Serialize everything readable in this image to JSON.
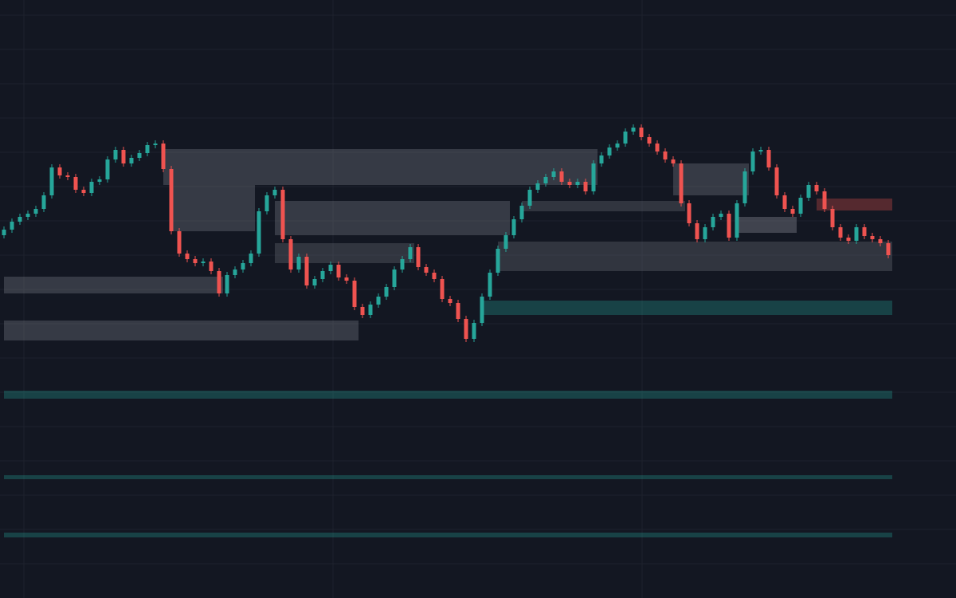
{
  "chart_data": {
    "type": "candlestick",
    "up_color": "#26a69a",
    "down_color": "#ef5350",
    "xlim": [
      -0.5,
      111.3
    ],
    "ylim": [
      0,
      750
    ],
    "open": [
      455,
      462,
      472,
      478,
      482,
      488,
      505,
      540,
      530,
      528,
      512,
      508,
      522,
      525,
      550,
      562,
      545,
      552,
      558,
      568,
      570,
      538,
      460,
      432,
      425,
      420,
      422,
      410,
      382,
      405,
      412,
      420,
      432,
      485,
      505,
      512,
      450,
      412,
      428,
      392,
      400,
      410,
      418,
      402,
      398,
      365,
      355,
      368,
      378,
      390,
      412,
      425,
      440,
      415,
      408,
      400,
      375,
      370,
      350,
      325,
      345,
      378,
      408,
      438,
      455,
      475,
      492,
      512,
      520,
      528,
      535,
      522,
      518,
      522,
      510,
      545,
      555,
      565,
      570,
      585,
      590,
      578,
      570,
      560,
      550,
      545,
      495,
      470,
      450,
      465,
      478,
      482,
      452,
      495,
      535,
      560,
      562,
      540,
      505,
      488,
      482,
      502,
      518,
      510,
      488,
      465,
      452,
      448,
      465,
      454,
      450,
      445
    ],
    "high": [
      466,
      476,
      482,
      486,
      492,
      509,
      544,
      544,
      534,
      532,
      516,
      526,
      529,
      554,
      566,
      566,
      556,
      562,
      572,
      574,
      574,
      542,
      464,
      436,
      429,
      426,
      426,
      414,
      409,
      416,
      424,
      436,
      489,
      509,
      516,
      516,
      454,
      432,
      432,
      404,
      414,
      422,
      422,
      406,
      402,
      369,
      372,
      382,
      394,
      416,
      429,
      444,
      444,
      419,
      412,
      404,
      379,
      374,
      354,
      349,
      382,
      412,
      442,
      459,
      479,
      496,
      516,
      524,
      532,
      539,
      539,
      526,
      526,
      526,
      549,
      559,
      569,
      574,
      589,
      594,
      594,
      582,
      574,
      564,
      554,
      549,
      499,
      474,
      469,
      482,
      486,
      486,
      499,
      539,
      564,
      566,
      566,
      544,
      509,
      492,
      506,
      522,
      522,
      514,
      492,
      469,
      456,
      469,
      469,
      458,
      454,
      449
    ],
    "low": [
      451,
      458,
      468,
      474,
      478,
      484,
      501,
      526,
      524,
      508,
      504,
      504,
      518,
      521,
      546,
      541,
      541,
      548,
      554,
      564,
      534,
      456,
      428,
      421,
      416,
      416,
      406,
      378,
      378,
      401,
      408,
      416,
      428,
      481,
      501,
      446,
      408,
      408,
      388,
      388,
      396,
      406,
      398,
      394,
      361,
      351,
      351,
      364,
      374,
      386,
      408,
      421,
      411,
      404,
      396,
      371,
      366,
      346,
      321,
      321,
      341,
      374,
      404,
      434,
      451,
      471,
      488,
      508,
      516,
      524,
      518,
      514,
      514,
      506,
      506,
      541,
      551,
      561,
      566,
      581,
      574,
      566,
      556,
      546,
      541,
      491,
      466,
      446,
      446,
      461,
      474,
      448,
      448,
      491,
      531,
      556,
      536,
      501,
      484,
      478,
      478,
      498,
      506,
      484,
      461,
      448,
      444,
      444,
      450,
      446,
      441,
      426
    ],
    "close": [
      462,
      472,
      478,
      482,
      488,
      505,
      540,
      530,
      528,
      512,
      508,
      522,
      525,
      550,
      562,
      545,
      552,
      558,
      568,
      570,
      538,
      460,
      432,
      425,
      420,
      422,
      410,
      382,
      405,
      412,
      420,
      432,
      485,
      505,
      512,
      450,
      412,
      428,
      392,
      400,
      410,
      418,
      402,
      398,
      365,
      355,
      368,
      378,
      390,
      412,
      425,
      440,
      415,
      408,
      400,
      375,
      370,
      350,
      325,
      345,
      378,
      408,
      438,
      455,
      475,
      492,
      512,
      520,
      528,
      535,
      522,
      518,
      522,
      510,
      545,
      555,
      565,
      570,
      585,
      590,
      578,
      570,
      560,
      550,
      545,
      495,
      470,
      450,
      465,
      478,
      482,
      452,
      495,
      535,
      560,
      562,
      540,
      505,
      488,
      482,
      502,
      518,
      510,
      488,
      465,
      452,
      448,
      465,
      454,
      450,
      445,
      430
    ],
    "zones": [
      {
        "start": 20,
        "end": 74,
        "low": 518,
        "high": 563,
        "color": "rgba(120,123,134,0.35)"
      },
      {
        "start": 21,
        "end": 31,
        "low": 460,
        "high": 518,
        "color": "rgba(120,123,134,0.35)"
      },
      {
        "start": 34,
        "end": 63,
        "low": 455,
        "high": 498,
        "color": "rgba(120,123,134,0.35)"
      },
      {
        "start": 34,
        "end": 51,
        "low": 420,
        "high": 445,
        "color": "rgba(120,123,134,0.3)"
      },
      {
        "start": 0,
        "end": 27,
        "low": 382,
        "high": 403,
        "color": "rgba(120,123,134,0.35)"
      },
      {
        "start": 0,
        "end": 44,
        "low": 323,
        "high": 348,
        "color": "rgba(120,123,134,0.35)"
      },
      {
        "start": 62,
        "end": 111,
        "low": 410,
        "high": 447,
        "color": "rgba(120,123,134,0.3)"
      },
      {
        "start": 65,
        "end": 85,
        "low": 485,
        "high": 498,
        "color": "rgba(120,123,134,0.3)"
      },
      {
        "start": 84,
        "end": 93,
        "low": 505,
        "high": 545,
        "color": "rgba(120,123,134,0.35)"
      },
      {
        "start": 92,
        "end": 99,
        "low": 458,
        "high": 478,
        "color": "rgba(120,123,134,0.45)"
      },
      {
        "start": 60,
        "end": 111,
        "low": 355,
        "high": 373,
        "color": "rgba(38,166,154,0.3)"
      },
      {
        "start": 0,
        "end": 111,
        "low": 250,
        "high": 260,
        "color": "rgba(38,166,154,0.3)"
      },
      {
        "start": 0,
        "end": 111,
        "low": 149,
        "high": 154,
        "color": "rgba(38,166,154,0.3)"
      },
      {
        "start": 0,
        "end": 111,
        "low": 76,
        "high": 82,
        "color": "rgba(38,166,154,0.3)"
      },
      {
        "start": 102,
        "end": 111,
        "low": 486,
        "high": 501,
        "color": "rgba(239,83,80,0.3)"
      }
    ]
  }
}
